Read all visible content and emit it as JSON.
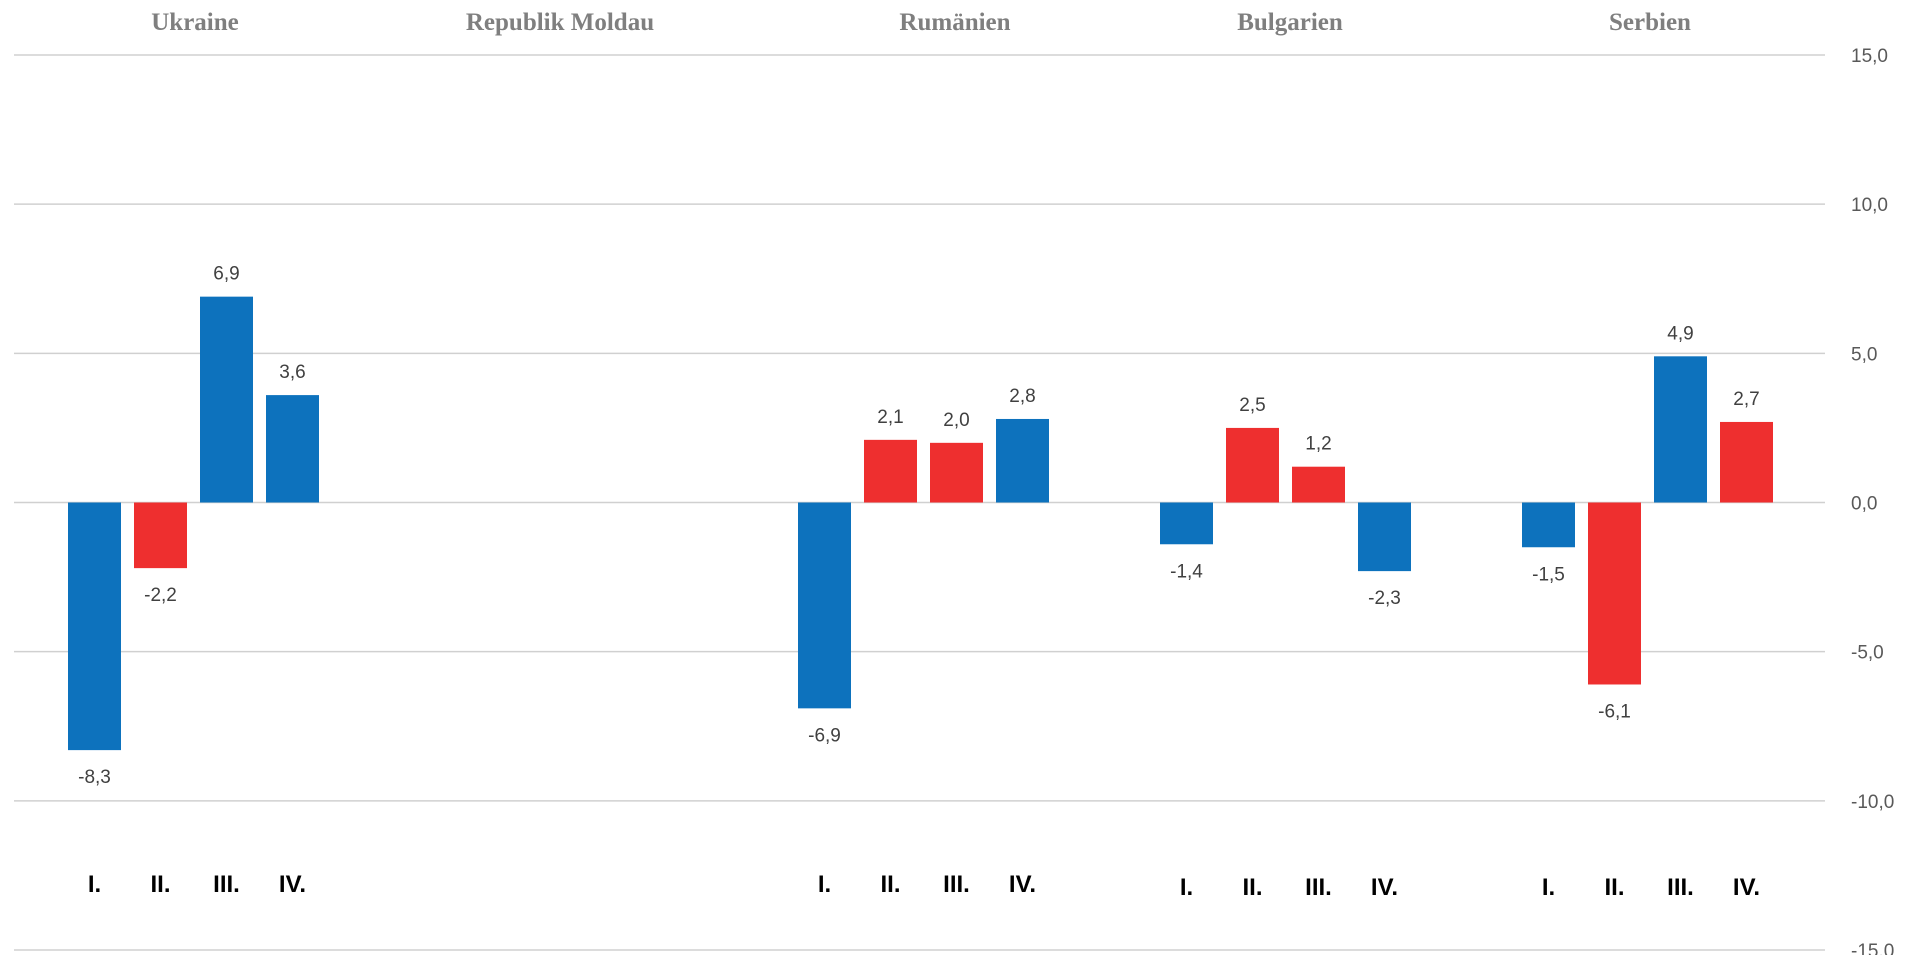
{
  "chart_data": {
    "type": "bar",
    "groups": [
      {
        "name": "Ukraine",
        "quarters": [
          "I.",
          "II.",
          "III.",
          "IV."
        ],
        "values": [
          -8.3,
          -2.2,
          6.9,
          3.6
        ],
        "labels": [
          "-8,3",
          "-2,2",
          "6,9",
          "3,6"
        ],
        "colors": [
          "#0d72bd",
          "#ee2f2f",
          "#0d72bd",
          "#0d72bd"
        ]
      },
      {
        "name": "Republik Moldau",
        "quarters": [],
        "values": [],
        "labels": [],
        "colors": []
      },
      {
        "name": "Rumänien",
        "quarters": [
          "I.",
          "II.",
          "III.",
          "IV."
        ],
        "values": [
          -6.9,
          2.1,
          2.0,
          2.8
        ],
        "labels": [
          "-6,9",
          "2,1",
          "2,0",
          "2,8"
        ],
        "colors": [
          "#0d72bd",
          "#ee2f2f",
          "#ee2f2f",
          "#0d72bd"
        ]
      },
      {
        "name": "Bulgarien",
        "quarters": [
          "I.",
          "II.",
          "III.",
          "IV."
        ],
        "values": [
          -1.4,
          2.5,
          1.2,
          -2.3
        ],
        "labels": [
          "-1,4",
          "2,5",
          "1,2",
          "-2,3"
        ],
        "colors": [
          "#0d72bd",
          "#ee2f2f",
          "#ee2f2f",
          "#0d72bd"
        ]
      },
      {
        "name": "Serbien",
        "quarters": [
          "I.",
          "II.",
          "III.",
          "IV."
        ],
        "values": [
          -1.5,
          -6.1,
          4.9,
          2.7
        ],
        "labels": [
          "-1,5",
          "-6,1",
          "4,9",
          "2,7"
        ],
        "colors": [
          "#0d72bd",
          "#ee2f2f",
          "#0d72bd",
          "#ee2f2f"
        ]
      }
    ],
    "yaxis": {
      "ticks": [
        15,
        10,
        5,
        0,
        -5,
        -10,
        -15
      ],
      "tick_labels": [
        "15,0",
        "10,0",
        "5,0",
        "0,0",
        "-5,0",
        "-10,0",
        "-15,0"
      ],
      "ylim": [
        -15,
        15
      ],
      "position": "right"
    },
    "grid": true,
    "legend": false
  }
}
